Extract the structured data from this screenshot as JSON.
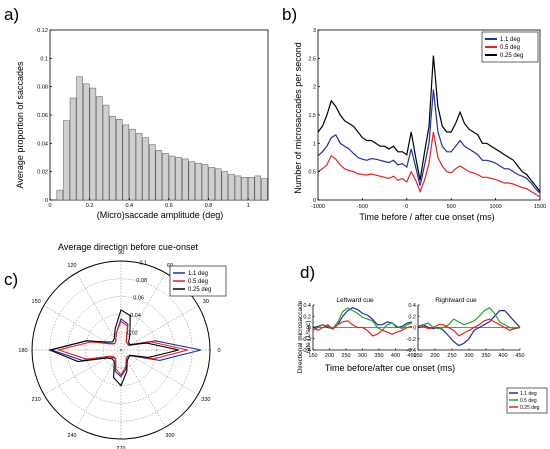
{
  "panels": {
    "a": "a)",
    "b": "b)",
    "c": "c)",
    "d": "d)"
  },
  "colors": {
    "blue": "#1f2ea8",
    "red": "#e32222",
    "black": "#000000",
    "green": "#2aa12a",
    "bar_fill": "#cfcfcf"
  },
  "chart_data": [
    {
      "id": "a",
      "type": "bar",
      "xlabel": "(Micro)saccade amplitude (deg)",
      "ylabel": "Average proportion of saccades",
      "xlim": [
        0,
        1.1
      ],
      "ylim": [
        0,
        0.12
      ],
      "xticks": [
        0,
        0.2,
        0.4,
        0.6,
        0.8,
        1
      ],
      "xtick_labels": [
        "0",
        "0.2",
        "0.4",
        "0.6",
        "0.8",
        "1"
      ],
      "yticks": [
        0,
        0.02,
        0.04,
        0.06,
        0.08,
        0.1,
        0.12
      ],
      "ytick_labels": [
        "0",
        "0.02",
        "0.04",
        "0.06",
        "0.08",
        "0.1",
        "0.12"
      ],
      "bin_width": 0.0333,
      "bin_start": 0.033,
      "values": [
        0.007,
        0.056,
        0.072,
        0.087,
        0.082,
        0.079,
        0.073,
        0.067,
        0.059,
        0.057,
        0.053,
        0.05,
        0.047,
        0.044,
        0.039,
        0.035,
        0.033,
        0.031,
        0.03,
        0.029,
        0.027,
        0.026,
        0.025,
        0.023,
        0.022,
        0.02,
        0.018,
        0.017,
        0.016,
        0.016,
        0.017,
        0.015
      ]
    },
    {
      "id": "b",
      "type": "line",
      "xlabel": "Time before / after cue onset (ms)",
      "ylabel": "Number of microsaccades per second",
      "xlim": [
        -1000,
        1500
      ],
      "ylim": [
        0,
        3
      ],
      "xticks": [
        -1000,
        -500,
        0,
        500,
        1000,
        1500
      ],
      "xtick_labels": [
        "-1000",
        "-500",
        "0",
        "500",
        "1000",
        "1500"
      ],
      "yticks": [
        0,
        0.5,
        1,
        1.5,
        2,
        2.5,
        3
      ],
      "ytick_labels": [
        "0",
        "0.5",
        "1",
        "1.5",
        "2",
        "2.5",
        "3"
      ],
      "x": [
        -1000,
        -950,
        -900,
        -850,
        -800,
        -750,
        -700,
        -650,
        -600,
        -550,
        -500,
        -450,
        -400,
        -350,
        -300,
        -250,
        -200,
        -150,
        -100,
        -50,
        0,
        50,
        100,
        150,
        200,
        250,
        300,
        350,
        400,
        450,
        500,
        550,
        600,
        650,
        700,
        750,
        800,
        850,
        900,
        950,
        1000,
        1050,
        1100,
        1150,
        1200,
        1250,
        1300,
        1350,
        1400,
        1450,
        1500
      ],
      "series": [
        {
          "name": "1.1 deg",
          "color": "#1f2ea8",
          "values": [
            0.78,
            0.85,
            0.95,
            1.1,
            1.15,
            1.0,
            0.95,
            0.9,
            0.82,
            0.75,
            0.72,
            0.7,
            0.73,
            0.72,
            0.7,
            0.68,
            0.66,
            0.7,
            0.62,
            0.64,
            0.58,
            0.9,
            0.58,
            0.25,
            0.62,
            1.0,
            1.95,
            1.2,
            0.95,
            0.85,
            0.85,
            0.95,
            1.05,
            0.95,
            0.9,
            0.85,
            0.8,
            0.7,
            0.7,
            0.68,
            0.65,
            0.6,
            0.55,
            0.55,
            0.5,
            0.45,
            0.42,
            0.38,
            0.3,
            0.2,
            0.12
          ]
        },
        {
          "name": "0.5 deg",
          "color": "#e32222",
          "values": [
            0.5,
            0.55,
            0.62,
            0.78,
            0.72,
            0.62,
            0.55,
            0.52,
            0.5,
            0.46,
            0.45,
            0.44,
            0.46,
            0.44,
            0.42,
            0.4,
            0.38,
            0.42,
            0.35,
            0.38,
            0.32,
            0.5,
            0.35,
            0.15,
            0.35,
            0.65,
            1.2,
            0.75,
            0.6,
            0.5,
            0.48,
            0.55,
            0.6,
            0.55,
            0.5,
            0.48,
            0.45,
            0.4,
            0.4,
            0.38,
            0.36,
            0.33,
            0.3,
            0.3,
            0.28,
            0.25,
            0.22,
            0.2,
            0.15,
            0.1,
            0.05
          ]
        },
        {
          "name": "0.25 deg",
          "color": "#000000",
          "values": [
            1.2,
            1.3,
            1.5,
            1.75,
            1.65,
            1.5,
            1.4,
            1.35,
            1.3,
            1.2,
            1.1,
            1.05,
            1.05,
            1.0,
            0.95,
            0.95,
            0.9,
            0.95,
            0.85,
            0.85,
            0.8,
            1.2,
            0.75,
            0.35,
            0.85,
            1.3,
            2.55,
            1.65,
            1.3,
            1.2,
            1.2,
            1.35,
            1.55,
            1.35,
            1.25,
            1.2,
            1.15,
            1.0,
            1.0,
            0.95,
            0.9,
            0.85,
            0.8,
            0.75,
            0.7,
            0.6,
            0.5,
            0.45,
            0.35,
            0.25,
            0.15
          ]
        }
      ],
      "legend": "top-right"
    },
    {
      "id": "c",
      "type": "polar",
      "title": "Average direction before cue-onset",
      "rlim": [
        0,
        0.1
      ],
      "rticks": [
        0.02,
        0.04,
        0.06,
        0.08,
        0.1
      ],
      "rtick_labels": [
        "0.02",
        "0.04",
        "0.06",
        "0.08",
        "0.1"
      ],
      "angle_ticks": [
        0,
        30,
        60,
        90,
        120,
        150,
        180,
        210,
        240,
        270,
        300,
        330
      ],
      "angle_tick_labels": [
        "0",
        "30",
        "60",
        "90",
        "120",
        "150",
        "180",
        "210",
        "240",
        "270",
        "300",
        "330"
      ],
      "angles": [
        0,
        15,
        30,
        45,
        60,
        75,
        90,
        105,
        120,
        135,
        150,
        165,
        180,
        195,
        210,
        225,
        240,
        255,
        270,
        285,
        300,
        315,
        330,
        345
      ],
      "series": [
        {
          "name": "1.1 deg",
          "color": "#1f2ea8",
          "values": [
            0.09,
            0.04,
            0.012,
            0.01,
            0.012,
            0.03,
            0.035,
            0.02,
            0.012,
            0.01,
            0.015,
            0.04,
            0.078,
            0.045,
            0.015,
            0.012,
            0.012,
            0.025,
            0.03,
            0.022,
            0.012,
            0.01,
            0.013,
            0.045
          ]
        },
        {
          "name": "0.5 deg",
          "color": "#e32222",
          "values": [
            0.075,
            0.035,
            0.01,
            0.01,
            0.012,
            0.028,
            0.032,
            0.02,
            0.012,
            0.01,
            0.014,
            0.035,
            0.07,
            0.04,
            0.014,
            0.011,
            0.012,
            0.022,
            0.028,
            0.02,
            0.012,
            0.01,
            0.012,
            0.038
          ]
        },
        {
          "name": "0.25 deg",
          "color": "#000000",
          "values": [
            0.065,
            0.03,
            0.012,
            0.012,
            0.02,
            0.04,
            0.045,
            0.025,
            0.015,
            0.013,
            0.018,
            0.04,
            0.08,
            0.05,
            0.018,
            0.014,
            0.015,
            0.032,
            0.04,
            0.025,
            0.014,
            0.012,
            0.012,
            0.032
          ]
        }
      ],
      "legend": "top-right"
    },
    {
      "id": "d",
      "type": "line",
      "ylabel": "Directional microsaccade rate (1/sec)",
      "xlabel": "Time before/after cue onset (ms)",
      "subplots": [
        {
          "title": "Leftward cue",
          "xlim": [
            150,
            450
          ],
          "ylim": [
            -0.4,
            0.4
          ],
          "xticks": [
            150,
            200,
            250,
            300,
            350,
            400,
            450
          ],
          "xtick_labels": [
            "150",
            "200",
            "250",
            "300",
            "350",
            "400",
            "450"
          ],
          "yticks": [
            -0.4,
            -0.2,
            0,
            0.2,
            0.4
          ],
          "ytick_labels": [
            "-0.4",
            "-0.2",
            "0",
            "0.2",
            "0.4"
          ],
          "x": [
            150,
            165,
            180,
            195,
            210,
            225,
            240,
            255,
            270,
            285,
            300,
            315,
            330,
            345,
            360,
            375,
            390,
            405,
            420,
            435,
            450
          ],
          "series": [
            {
              "name": "1.1 deg",
              "color": "#1f2ea8",
              "values": [
                0.0,
                0.02,
                0.05,
                0.0,
                -0.02,
                0.05,
                0.2,
                0.3,
                0.35,
                0.32,
                0.25,
                0.22,
                0.15,
                0.05,
                0.05,
                0.1,
                0.08,
                0.0,
                0.02,
                0.08,
                0.1
              ]
            },
            {
              "name": "0.5 deg",
              "color": "#2aa12a",
              "values": [
                -0.05,
                0.0,
                0.05,
                0.02,
                -0.02,
                0.1,
                0.28,
                0.35,
                0.3,
                0.25,
                0.18,
                0.15,
                0.12,
                0.0,
                -0.05,
                0.05,
                0.08,
                0.02,
                -0.02,
                0.05,
                0.08
              ]
            },
            {
              "name": "0.25 deg",
              "color": "#e32222",
              "values": [
                0.0,
                -0.05,
                0.0,
                0.05,
                -0.03,
                0.05,
                0.1,
                0.12,
                0.05,
                0.0,
                0.0,
                -0.05,
                -0.15,
                -0.12,
                -0.05,
                -0.08,
                -0.12,
                -0.08,
                -0.05,
                0.0,
                0.02
              ]
            }
          ]
        },
        {
          "title": "Rightward cue",
          "xlim": [
            150,
            450
          ],
          "ylim": [
            -0.4,
            0.4
          ],
          "xticks": [
            150,
            200,
            250,
            300,
            350,
            400,
            450
          ],
          "xtick_labels": [
            "150",
            "200",
            "250",
            "300",
            "350",
            "400",
            "450"
          ],
          "yticks": [
            -0.4,
            -0.2,
            0,
            0.2,
            0.4
          ],
          "ytick_labels": [
            "-0.4",
            "-0.2",
            "0",
            "0.2",
            "0.4"
          ],
          "x": [
            150,
            165,
            180,
            195,
            210,
            225,
            240,
            255,
            270,
            285,
            300,
            315,
            330,
            345,
            360,
            375,
            390,
            405,
            420,
            435,
            450
          ],
          "series": [
            {
              "name": "1.1 deg",
              "color": "#1f2ea8",
              "values": [
                0.02,
                0.05,
                0.0,
                -0.02,
                0.0,
                -0.05,
                -0.15,
                -0.25,
                -0.32,
                -0.28,
                -0.2,
                -0.05,
                0.0,
                0.05,
                0.1,
                0.2,
                0.3,
                0.3,
                0.2,
                0.1,
                0.0
              ]
            },
            {
              "name": "0.5 deg",
              "color": "#2aa12a",
              "values": [
                0.0,
                0.05,
                0.08,
                0.0,
                -0.02,
                0.0,
                0.05,
                0.15,
                0.1,
                0.05,
                0.08,
                0.12,
                0.2,
                0.3,
                0.35,
                0.25,
                0.1,
                0.05,
                0.0,
                -0.02,
                0.0
              ]
            },
            {
              "name": "0.25 deg",
              "color": "#e32222",
              "values": [
                0.0,
                0.02,
                -0.02,
                0.0,
                0.05,
                0.05,
                0.0,
                -0.05,
                -0.15,
                -0.1,
                -0.05,
                0.0,
                0.05,
                0.12,
                0.15,
                0.1,
                0.05,
                0.0,
                -0.05,
                -0.02,
                0.0
              ]
            }
          ]
        }
      ],
      "legend": "bottom-right"
    }
  ]
}
